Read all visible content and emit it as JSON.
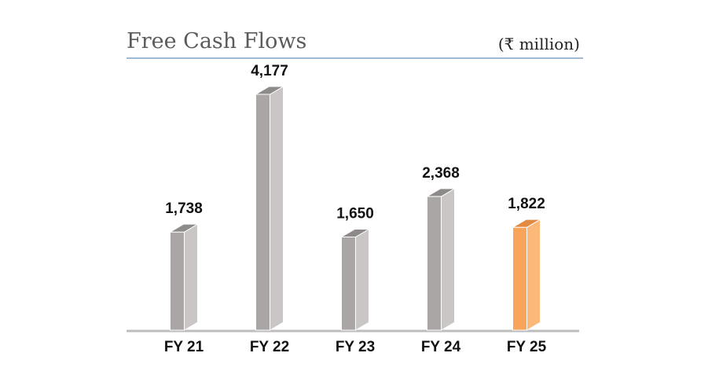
{
  "chart_data": {
    "type": "bar",
    "title": "Free Cash Flows",
    "unit_label": "(₹ million)",
    "categories": [
      "FY 21",
      "FY 22",
      "FY 23",
      "FY 24",
      "FY 25"
    ],
    "values": [
      1738,
      4177,
      1650,
      2368,
      1822
    ],
    "value_labels": [
      "1,738",
      "4,177",
      "1,650",
      "2,368",
      "1,822"
    ],
    "ylim": [
      0,
      4177
    ],
    "grid": false,
    "colors": {
      "default_front": "#aaa6a5",
      "default_side": "#c9c6c5",
      "default_top": "#8d8a89",
      "highlight_front": "#f9a45b",
      "highlight_side": "#fbb878",
      "highlight_top": "#e08a42",
      "title_rule": "#9dbad6",
      "baseline": "#bdbdbd"
    },
    "highlight_index": 4
  }
}
